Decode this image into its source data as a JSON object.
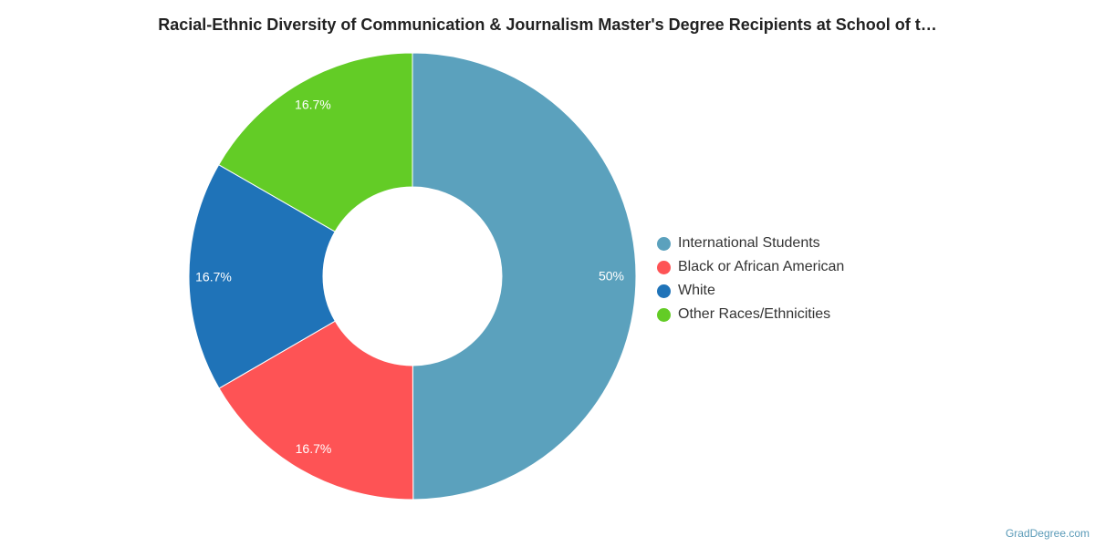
{
  "chart_data": {
    "type": "pie",
    "variant": "donut",
    "title": "Racial-Ethnic Diversity of Communication & Journalism Master's Degree Recipients at School of t…",
    "categories": [
      "International Students",
      "Black or African American",
      "White",
      "Other Races/Ethnicities"
    ],
    "values": [
      50,
      16.7,
      16.7,
      16.7
    ],
    "labels": [
      "50%",
      "16.7%",
      "16.7%",
      "16.7%"
    ],
    "colors": [
      "#5ba1bd",
      "#fe5355",
      "#1f73b8",
      "#63cc26"
    ],
    "legend_position": "right"
  },
  "credit": "GradDegree.com"
}
